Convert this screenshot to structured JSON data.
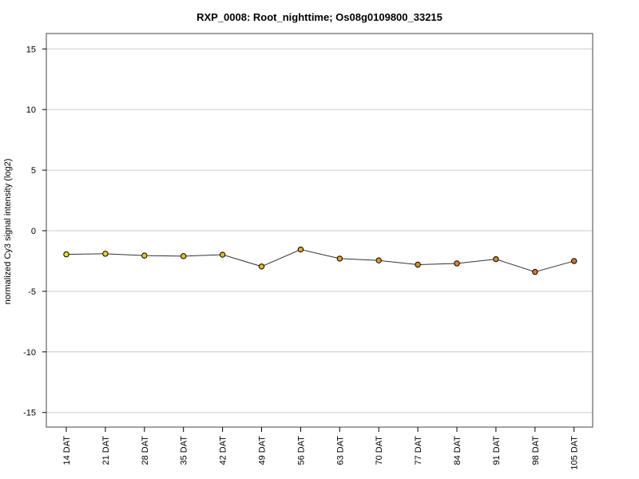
{
  "chart_data": {
    "type": "line",
    "title": "RXP_0008: Root_nighttime; Os08g0109800_33215",
    "xlabel": "",
    "ylabel": "normalized Cy3 signal intensity (log2)",
    "ylim": [
      -16.2,
      16.2
    ],
    "yticks": [
      15,
      10,
      5,
      0,
      -5,
      -10,
      -15
    ],
    "ytick_labels": [
      "15",
      "10",
      "5",
      "0",
      "-5",
      "-10",
      "-15"
    ],
    "grid": "horizontal",
    "categories": [
      "14 DAT",
      "21 DAT",
      "28 DAT",
      "35 DAT",
      "42 DAT",
      "49 DAT",
      "56 DAT",
      "63 DAT",
      "70 DAT",
      "77 DAT",
      "84 DAT",
      "91 DAT",
      "98 DAT",
      "105 DAT"
    ],
    "series": [
      {
        "values": [
          -1.95,
          -1.9,
          -2.05,
          -2.1,
          -1.98,
          -2.95,
          -1.55,
          -2.3,
          -2.45,
          -2.8,
          -2.7,
          -2.35,
          -3.4,
          -2.5
        ]
      }
    ],
    "point_colors": [
      "#f0e020",
      "#ecd71e",
      "#e8cd1c",
      "#e5c41c",
      "#e3bc1c",
      "#e2b41d",
      "#e2ab1f",
      "#e1a220",
      "#e19a21",
      "#e09122",
      "#df8a23",
      "#de8224",
      "#dd7a25",
      "#dc7226"
    ],
    "colors": {
      "line": "#333333",
      "grid": "#cccccc",
      "frame": "#444444"
    }
  }
}
